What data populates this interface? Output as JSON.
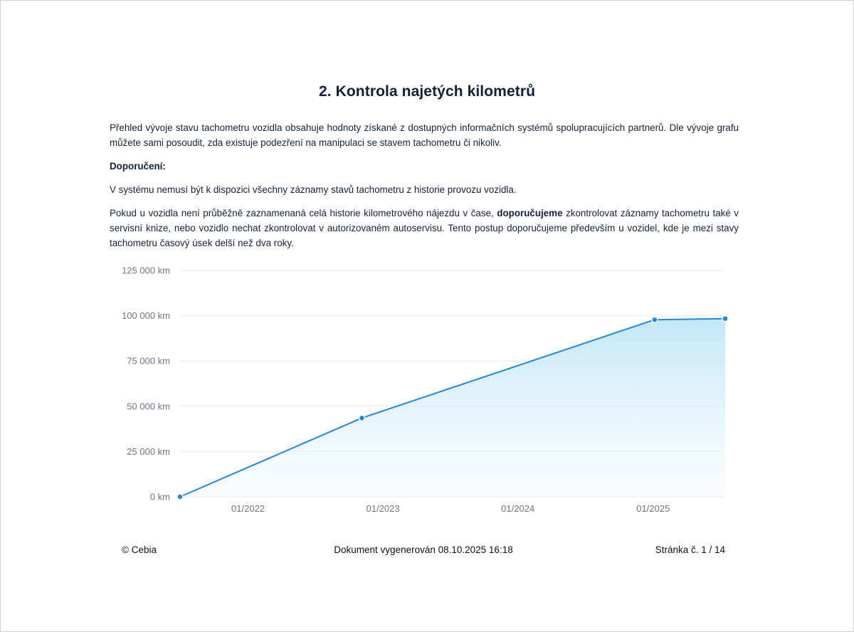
{
  "document": {
    "title": "2. Kontrola najetých kilometrů",
    "intro": "Přehled vývoje stavu tachometru vozidla obsahuje hodnoty získané z dostupných informačních systémů spolupracujících partnerů. Dle vývoje grafu můžete sami posoudit, zda existuje podezření na manipulaci se stavem tachometru či nikoliv.",
    "recommendation_label": "Doporučení:",
    "note": "V systému nemusí být k dispozici všechny záznamy stavů tachometru z historie provozu vozidla.",
    "advice_before": "Pokud u vozidla není průběžně zaznamenaná celá historie kilometrového nájezdu v čase, ",
    "advice_bold": "doporučujeme",
    "advice_after": " zkontrolovat záznamy tachometru také v servisní knize, nebo vozidlo nechat zkontrolovat v autorizovaném autoservisu. Tento postup doporučujeme především u vozidel, kde je mezi stavy tachometru časový úsek delší než dva roky."
  },
  "chart_data": {
    "type": "area",
    "title": "",
    "xlabel": "",
    "ylabel": "",
    "ylim": [
      0,
      125000
    ],
    "xlim": [
      "2021-07-01",
      "2025-07-15"
    ],
    "y_ticks": [
      0,
      25000,
      50000,
      75000,
      100000,
      125000
    ],
    "y_tick_labels": [
      "0 km",
      "25 000 km",
      "50 000 km",
      "75 000 km",
      "100 000 km",
      "125 000 km"
    ],
    "x_ticks": [
      "2022-01-01",
      "2023-01-01",
      "2024-01-01",
      "2025-01-01"
    ],
    "x_tick_labels": [
      "01/2022",
      "01/2023",
      "01/2024",
      "01/2025"
    ],
    "grid": true,
    "series": [
      {
        "points": [
          {
            "x": "2021-07-01",
            "y": 0
          },
          {
            "x": "2022-11-05",
            "y": 43500
          },
          {
            "x": "2025-01-05",
            "y": 97800
          },
          {
            "x": "2025-07-15",
            "y": 98400
          }
        ]
      }
    ],
    "colors": {
      "line": "#1e88e5",
      "area": "#bfe6f7",
      "grid": "#e8ebef"
    }
  },
  "footer": {
    "copyright": "© Cebia",
    "generated": "Dokument vygenerován 08.10.2025 16:18",
    "page": "Stránka č. 1 / 14"
  }
}
